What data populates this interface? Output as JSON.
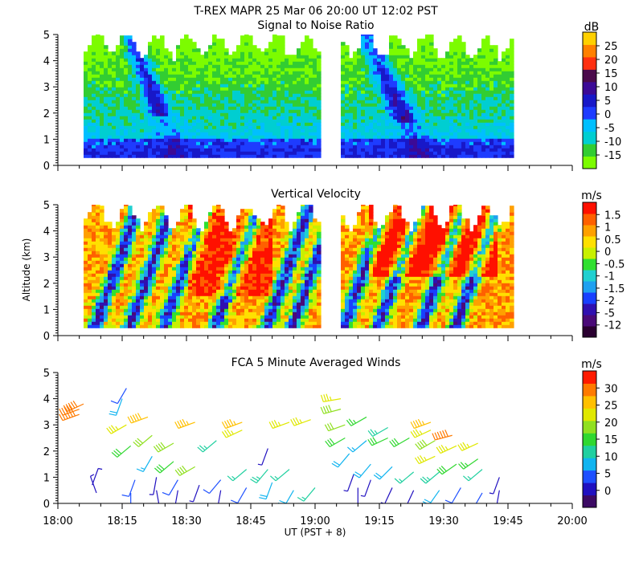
{
  "header": {
    "title_line": "T-REX   MAPR 25 Mar 06   20:00 UT   12:02   PST"
  },
  "chart_data": [
    {
      "type": "heatmap",
      "title": "Signal to Noise Ratio",
      "ylabel": "",
      "xlabel": "",
      "ylim": [
        0,
        5
      ],
      "yticks": [
        "0",
        "1",
        "2",
        "3",
        "4",
        "5"
      ],
      "x_range_minutes": [
        0,
        120
      ],
      "data_segments_minutes": [
        [
          6,
          61
        ],
        [
          66,
          106
        ]
      ],
      "altitude_range_km": [
        0.3,
        5
      ],
      "colorbar": {
        "unit": "dB",
        "tick_labels": [
          "25",
          "20",
          "15",
          "10",
          "5",
          "0",
          "-5",
          "-10",
          "-15"
        ],
        "colors": [
          "#7cfc00",
          "#32cd32",
          "#00ced1",
          "#00bfff",
          "#1e3cff",
          "#1818c8",
          "#3c0a96",
          "#4b0a4b",
          "#ff3010",
          "#ff8000",
          "#ffd000"
        ]
      }
    },
    {
      "type": "heatmap",
      "title": "Vertical Velocity",
      "ylabel": "Altitude (km)",
      "xlabel": "",
      "ylim": [
        0,
        5
      ],
      "yticks": [
        "0",
        "1",
        "2",
        "3",
        "4",
        "5"
      ],
      "x_range_minutes": [
        0,
        120
      ],
      "data_segments_minutes": [
        [
          6,
          61
        ],
        [
          66,
          106
        ]
      ],
      "colorbar": {
        "unit": "m/s",
        "tick_labels": [
          "1.5",
          "1",
          "0.5",
          "0",
          "-0.5",
          "-1",
          "-1.5",
          "-2",
          "-5",
          "-12"
        ],
        "colors": [
          "#2a0030",
          "#4a0a78",
          "#3010b0",
          "#1840ff",
          "#1ea0f0",
          "#20d0d0",
          "#30e030",
          "#c8f000",
          "#ffe000",
          "#ffa000",
          "#ff6000",
          "#ff1000"
        ]
      }
    },
    {
      "type": "scatter",
      "title": "FCA 5 Minute Averaged Winds",
      "ylabel": "",
      "xlabel": "UT  (PST + 8)",
      "ylim": [
        0,
        5
      ],
      "yticks": [
        "0",
        "1",
        "2",
        "3",
        "4",
        "5"
      ],
      "xticks": [
        "18:00",
        "18:15",
        "18:30",
        "18:45",
        "19:00",
        "19:15",
        "19:30",
        "19:45",
        "20:00"
      ],
      "x_range_minutes": [
        0,
        120
      ],
      "colorbar": {
        "unit": "m/s",
        "tick_labels": [
          "30",
          "25",
          "20",
          "15",
          "10",
          "5",
          "0"
        ],
        "colors": [
          "#3c0a64",
          "#2010c0",
          "#1e50ff",
          "#10b4f0",
          "#20d0a0",
          "#30d830",
          "#90e020",
          "#e0e800",
          "#ffc000",
          "#ff7a00",
          "#ff1a00"
        ]
      },
      "barbs": [
        {
          "t": 5,
          "alt": 3.4,
          "speed": 28,
          "dir": 250
        },
        {
          "t": 5,
          "alt": 3.6,
          "speed": 27,
          "dir": 250
        },
        {
          "t": 6,
          "alt": 3.8,
          "speed": 26,
          "dir": 245
        },
        {
          "t": 8,
          "alt": 0.7,
          "speed": 3,
          "dir": 20
        },
        {
          "t": 9,
          "alt": 0.4,
          "speed": 2,
          "dir": 340
        },
        {
          "t": 15,
          "alt": 4.0,
          "speed": 8,
          "dir": 200
        },
        {
          "t": 16,
          "alt": 4.4,
          "speed": 6,
          "dir": 210
        },
        {
          "t": 16,
          "alt": 3.0,
          "speed": 20,
          "dir": 240
        },
        {
          "t": 17,
          "alt": 2.2,
          "speed": 16,
          "dir": 230
        },
        {
          "t": 18,
          "alt": 0.9,
          "speed": 6,
          "dir": 200
        },
        {
          "t": 17,
          "alt": 0.4,
          "speed": 5,
          "dir": 180
        },
        {
          "t": 21,
          "alt": 3.3,
          "speed": 25,
          "dir": 250
        },
        {
          "t": 22,
          "alt": 2.6,
          "speed": 17,
          "dir": 230
        },
        {
          "t": 22,
          "alt": 1.8,
          "speed": 10,
          "dir": 210
        },
        {
          "t": 23,
          "alt": 1.0,
          "speed": 4,
          "dir": 190
        },
        {
          "t": 23,
          "alt": 0.5,
          "speed": 3,
          "dir": 170
        },
        {
          "t": 27,
          "alt": 2.3,
          "speed": 18,
          "dir": 240
        },
        {
          "t": 27,
          "alt": 1.6,
          "speed": 16,
          "dir": 230
        },
        {
          "t": 28,
          "alt": 0.9,
          "speed": 7,
          "dir": 210
        },
        {
          "t": 28,
          "alt": 0.5,
          "speed": 3,
          "dir": 190
        },
        {
          "t": 32,
          "alt": 3.1,
          "speed": 24,
          "dir": 250
        },
        {
          "t": 32,
          "alt": 1.4,
          "speed": 19,
          "dir": 240
        },
        {
          "t": 33,
          "alt": 0.7,
          "speed": 4,
          "dir": 200
        },
        {
          "t": 37,
          "alt": 2.4,
          "speed": 13,
          "dir": 230
        },
        {
          "t": 38,
          "alt": 0.9,
          "speed": 6,
          "dir": 220
        },
        {
          "t": 38,
          "alt": 0.5,
          "speed": 4,
          "dir": 190
        },
        {
          "t": 43,
          "alt": 3.1,
          "speed": 23,
          "dir": 250
        },
        {
          "t": 43,
          "alt": 2.8,
          "speed": 22,
          "dir": 245
        },
        {
          "t": 44,
          "alt": 1.3,
          "speed": 12,
          "dir": 230
        },
        {
          "t": 44,
          "alt": 0.6,
          "speed": 6,
          "dir": 210
        },
        {
          "t": 49,
          "alt": 2.1,
          "speed": 4,
          "dir": 200
        },
        {
          "t": 49,
          "alt": 1.3,
          "speed": 13,
          "dir": 220
        },
        {
          "t": 50,
          "alt": 0.8,
          "speed": 8,
          "dir": 200
        },
        {
          "t": 54,
          "alt": 3.1,
          "speed": 21,
          "dir": 250
        },
        {
          "t": 54,
          "alt": 1.3,
          "speed": 11,
          "dir": 230
        },
        {
          "t": 55,
          "alt": 0.5,
          "speed": 9,
          "dir": 210
        },
        {
          "t": 59,
          "alt": 3.2,
          "speed": 21,
          "dir": 250
        },
        {
          "t": 60,
          "alt": 0.6,
          "speed": 11,
          "dir": 220
        },
        {
          "t": 66,
          "alt": 4.0,
          "speed": 20,
          "dir": 260
        },
        {
          "t": 66,
          "alt": 3.6,
          "speed": 19,
          "dir": 255
        },
        {
          "t": 67,
          "alt": 3.0,
          "speed": 17,
          "dir": 250
        },
        {
          "t": 67,
          "alt": 2.5,
          "speed": 15,
          "dir": 240
        },
        {
          "t": 68,
          "alt": 1.9,
          "speed": 9,
          "dir": 220
        },
        {
          "t": 69,
          "alt": 1.1,
          "speed": 4,
          "dir": 200
        },
        {
          "t": 70,
          "alt": 0.6,
          "speed": 3,
          "dir": 180
        },
        {
          "t": 72,
          "alt": 3.3,
          "speed": 14,
          "dir": 240
        },
        {
          "t": 72,
          "alt": 2.4,
          "speed": 10,
          "dir": 230
        },
        {
          "t": 73,
          "alt": 1.5,
          "speed": 8,
          "dir": 220
        },
        {
          "t": 73,
          "alt": 0.9,
          "speed": 3,
          "dir": 200
        },
        {
          "t": 77,
          "alt": 2.9,
          "speed": 13,
          "dir": 240
        },
        {
          "t": 77,
          "alt": 2.5,
          "speed": 16,
          "dir": 245
        },
        {
          "t": 78,
          "alt": 1.4,
          "speed": 8,
          "dir": 225
        },
        {
          "t": 78,
          "alt": 0.6,
          "speed": 4,
          "dir": 205
        },
        {
          "t": 82,
          "alt": 2.5,
          "speed": 15,
          "dir": 240
        },
        {
          "t": 83,
          "alt": 1.2,
          "speed": 11,
          "dir": 230
        },
        {
          "t": 83,
          "alt": 0.5,
          "speed": 4,
          "dir": 205
        },
        {
          "t": 87,
          "alt": 3.1,
          "speed": 24,
          "dir": 250
        },
        {
          "t": 87,
          "alt": 2.8,
          "speed": 22,
          "dir": 245
        },
        {
          "t": 88,
          "alt": 2.4,
          "speed": 19,
          "dir": 240
        },
        {
          "t": 88,
          "alt": 1.8,
          "speed": 20,
          "dir": 245
        },
        {
          "t": 89,
          "alt": 1.2,
          "speed": 13,
          "dir": 230
        },
        {
          "t": 89,
          "alt": 0.5,
          "speed": 8,
          "dir": 215
        },
        {
          "t": 92,
          "alt": 2.6,
          "speed": 28,
          "dir": 255
        },
        {
          "t": 93,
          "alt": 2.2,
          "speed": 21,
          "dir": 245
        },
        {
          "t": 93,
          "alt": 1.5,
          "speed": 16,
          "dir": 235
        },
        {
          "t": 94,
          "alt": 0.6,
          "speed": 5,
          "dir": 210
        },
        {
          "t": 98,
          "alt": 2.3,
          "speed": 20,
          "dir": 245
        },
        {
          "t": 98,
          "alt": 1.7,
          "speed": 14,
          "dir": 235
        },
        {
          "t": 99,
          "alt": 1.3,
          "speed": 12,
          "dir": 230
        },
        {
          "t": 99,
          "alt": 0.4,
          "speed": 5,
          "dir": 210
        },
        {
          "t": 103,
          "alt": 1.0,
          "speed": 4,
          "dir": 200
        },
        {
          "t": 103,
          "alt": 0.5,
          "speed": 3,
          "dir": 190
        }
      ]
    }
  ]
}
